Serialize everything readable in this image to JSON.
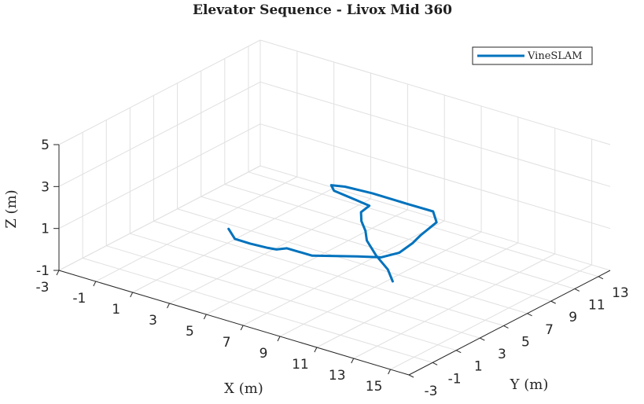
{
  "chart_data": {
    "type": "line",
    "title": "Elevator Sequence - Livox Mid 360",
    "xlabel": "X (m)",
    "ylabel": "Y (m)",
    "zlabel": "Z (m)",
    "xlim": [
      -3,
      16
    ],
    "ylim": [
      -3,
      14
    ],
    "zlim": [
      -1,
      5
    ],
    "xticks": [
      -3,
      -1,
      1,
      3,
      5,
      7,
      9,
      11,
      13,
      15
    ],
    "yticks": [
      -3,
      -1,
      1,
      3,
      5,
      7,
      9,
      11,
      13
    ],
    "zticks": [
      -1,
      1,
      3,
      5
    ],
    "grid": true,
    "legend_position": "top-right",
    "colors": {
      "series": "#0072bd",
      "axes": "#262626",
      "grid": "#e0e0e0"
    },
    "series": [
      {
        "name": "VineSLAM",
        "points": [
          [
            1.9,
            3.7,
            0.3
          ],
          [
            2.5,
            3.3,
            0.1
          ],
          [
            3.2,
            3.5,
            0.0
          ],
          [
            4.1,
            3.6,
            0.0
          ],
          [
            4.5,
            3.7,
            0.0
          ],
          [
            5.2,
            3.5,
            0.3
          ],
          [
            6.7,
            3.3,
            0.4
          ],
          [
            7.7,
            3.8,
            0.5
          ],
          [
            8.6,
            4.2,
            0.6
          ],
          [
            9.6,
            4.6,
            0.7
          ],
          [
            10.2,
            5.2,
            0.9
          ],
          [
            10.3,
            6.2,
            1.1
          ],
          [
            10.2,
            7.0,
            1.2
          ],
          [
            10.3,
            8.2,
            1.5
          ],
          [
            9.6,
            9.0,
            1.6
          ],
          [
            8.0,
            9.2,
            1.5
          ],
          [
            6.3,
            9.0,
            1.6
          ],
          [
            5.2,
            8.4,
            1.8
          ],
          [
            4.9,
            7.7,
            2.0
          ],
          [
            5.5,
            7.0,
            2.1
          ],
          [
            7.0,
            6.5,
            2.2
          ],
          [
            8.0,
            6.1,
            2.3
          ],
          [
            8.0,
            5.4,
            2.2
          ],
          [
            8.6,
            4.5,
            2.2
          ],
          [
            9.4,
            3.6,
            2.2
          ],
          [
            10.5,
            2.0,
            2.5
          ],
          [
            12.1,
            0.3,
            2.7
          ],
          [
            13.7,
            -1.2,
            2.9
          ],
          [
            14.8,
            -2.5,
            3.0
          ]
        ]
      }
    ]
  }
}
